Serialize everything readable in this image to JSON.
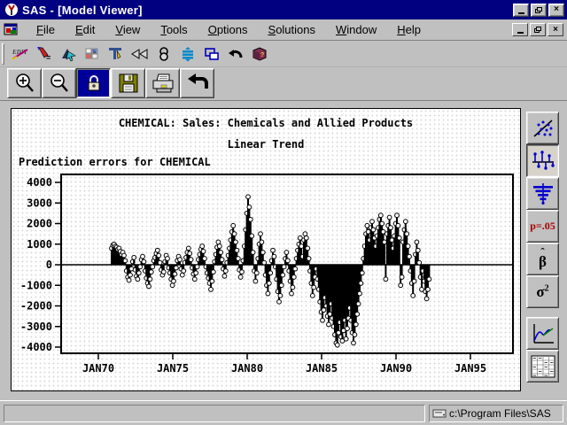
{
  "window": {
    "title": "SAS - [Model Viewer]"
  },
  "menubar": {
    "items": [
      {
        "label": "File"
      },
      {
        "label": "Edit"
      },
      {
        "label": "View"
      },
      {
        "label": "Tools"
      },
      {
        "label": "Options"
      },
      {
        "label": "Solutions"
      },
      {
        "label": "Window"
      },
      {
        "label": "Help"
      }
    ]
  },
  "toolbar_top": {
    "icons": [
      "edit-command",
      "formula-pencil",
      "select-graph",
      "table-edit",
      "design-ruler",
      "rewind",
      "links",
      "levels",
      "new-window",
      "undo",
      "help-book"
    ]
  },
  "toolbar_zoom": {
    "buttons": [
      "zoom-in",
      "zoom-out",
      "lock",
      "save",
      "print",
      "back"
    ],
    "active": "lock"
  },
  "viewer_toolbar": {
    "buttons": [
      {
        "name": "scatter-plot"
      },
      {
        "name": "needle-plot",
        "active": true
      },
      {
        "name": "acf-plot"
      },
      {
        "name": "p-value",
        "label": "p=.05",
        "color": "#aa0000"
      },
      {
        "name": "beta-hat",
        "label": "β̂",
        "hat": "ˆ",
        "base": "β"
      },
      {
        "name": "sigma-squared",
        "label": "σ²",
        "base": "σ",
        "sup": "2"
      },
      {
        "name": "forecast-plot"
      },
      {
        "name": "data-table"
      }
    ]
  },
  "statusbar": {
    "message": "",
    "path": "c:\\Program Files\\SAS"
  },
  "chart_data": {
    "type": "bar",
    "style": "needle-plot-with-circle-markers",
    "title": "CHEMICAL: Sales: Chemicals and Allied Products",
    "subtitle": "Linear Trend",
    "caption": "Prediction errors for CHEMICAL",
    "xlabel": "",
    "ylabel": "",
    "x_ticks": [
      "JAN70",
      "JAN75",
      "JAN80",
      "JAN85",
      "JAN90",
      "JAN95"
    ],
    "y_ticks": [
      4000,
      3000,
      2000,
      1000,
      0,
      -1000,
      -2000,
      -3000,
      -4000
    ],
    "ylim": [
      -4300,
      4400
    ],
    "grid": false,
    "legend": "none",
    "x_start": "FEB1971",
    "frequency": "monthly",
    "values": [
      800,
      950,
      1000,
      900,
      850,
      750,
      800,
      650,
      500,
      600,
      450,
      200,
      -300,
      -600,
      -750,
      -500,
      -200,
      150,
      350,
      -250,
      -550,
      -700,
      -400,
      -100,
      250,
      400,
      150,
      -300,
      -650,
      -900,
      -1050,
      -700,
      -350,
      -100,
      200,
      350,
      550,
      700,
      450,
      100,
      -250,
      -500,
      -350,
      150,
      450,
      300,
      -150,
      -400,
      -700,
      -1000,
      -800,
      -450,
      -150,
      200,
      400,
      250,
      -200,
      -500,
      -300,
      100,
      350,
      600,
      800,
      550,
      250,
      -150,
      -450,
      -700,
      -400,
      -100,
      250,
      500,
      750,
      900,
      650,
      300,
      -100,
      -400,
      -650,
      -900,
      -1200,
      -800,
      -350,
      150,
      500,
      850,
      1100,
      900,
      600,
      250,
      -200,
      -550,
      -300,
      100,
      450,
      800,
      1200,
      1600,
      1900,
      1500,
      1100,
      700,
      300,
      -250,
      -600,
      -350,
      200,
      900,
      1700,
      2500,
      3300,
      2800,
      2200,
      1400,
      600,
      -300,
      -800,
      -400,
      300,
      1000,
      1500,
      1100,
      600,
      100,
      -500,
      -1000,
      -1400,
      -900,
      -400,
      200,
      700,
      400,
      -100,
      -700,
      -1300,
      -1800,
      -1500,
      -1000,
      -500,
      -100,
      300,
      600,
      200,
      -300,
      -800,
      -1400,
      -1100,
      -600,
      -200,
      300,
      700,
      1000,
      1300,
      900,
      400,
      1200,
      1500,
      1300,
      800,
      300,
      -300,
      -900,
      -1500,
      -1100,
      -600,
      -200,
      -700,
      -1200,
      -1800,
      -2300,
      -2700,
      -2200,
      -1600,
      -2000,
      -2500,
      -2900,
      -2400,
      -1900,
      -2600,
      -3000,
      -3400,
      -3800,
      -3900,
      -3300,
      -2800,
      -3500,
      -3700,
      -3200,
      -2700,
      -3600,
      -3100,
      -2600,
      -2100,
      -2700,
      -3300,
      -3800,
      -3400,
      -2900,
      -2400,
      -1900,
      -1400,
      -900,
      -400,
      300,
      900,
      1500,
      1900,
      1600,
      1200,
      1800,
      2100,
      1700,
      1300,
      900,
      1400,
      1800,
      2200,
      2400,
      2000,
      1600,
      1100,
      -700,
      1500,
      1900,
      2300,
      1800,
      1200,
      800,
      1400,
      2000,
      2400,
      1900,
      1300,
      -1000,
      -600,
      1100,
      1700,
      2100,
      1500,
      900,
      400,
      -300,
      -900,
      -1500,
      -800,
      500,
      1100,
      700,
      100,
      -600,
      -1200,
      -300,
      -800,
      -1300,
      -1650,
      -1200,
      -700
    ]
  }
}
